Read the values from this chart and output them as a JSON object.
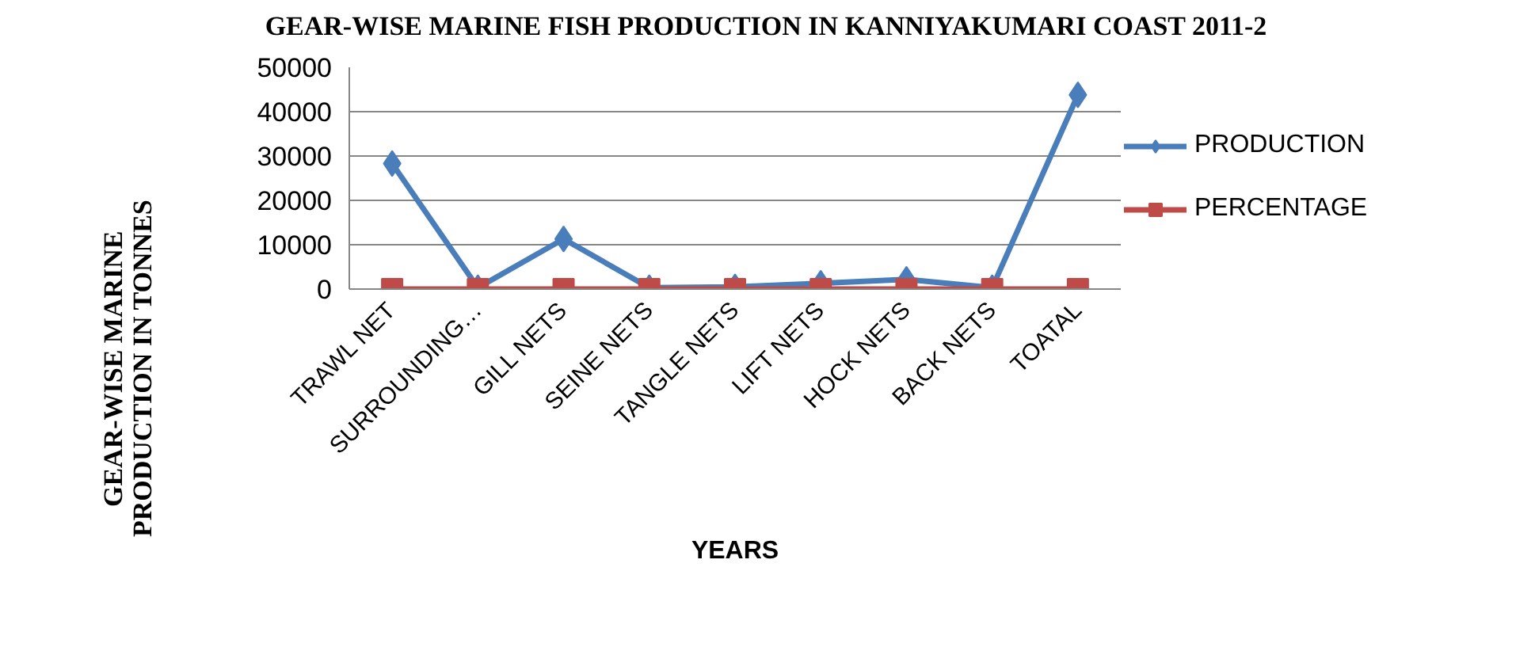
{
  "chart_data": {
    "type": "line",
    "title": "GEAR-WISE MARINE FISH PRODUCTION IN KANNIYAKUMARI COAST 2011-2",
    "xlabel": "YEARS",
    "ylabel": "GEAR-WISE MARINE\nPRODUCTION IN TONNES",
    "categories": [
      "TRAWL NET",
      "SURROUNDING…",
      "GILL NETS",
      "SEINE NETS",
      "TANGLE NETS",
      "LIFT NETS",
      "HOCK NETS",
      "BACK NETS",
      "TOATAL"
    ],
    "series": [
      {
        "name": "PRODUCTION",
        "color": "#4a7ebb",
        "marker": "diamond",
        "values": [
          28300,
          300,
          11300,
          300,
          500,
          1300,
          2200,
          300,
          43800
        ]
      },
      {
        "name": "PERCENTAGE",
        "color": "#be4b48",
        "marker": "square",
        "values": [
          0,
          0,
          0,
          0,
          0,
          0,
          0,
          0,
          0
        ]
      }
    ],
    "ylim": [
      0,
      50000
    ],
    "yticks": [
      0,
      10000,
      20000,
      30000,
      40000,
      50000
    ],
    "grid": "y",
    "legend": "right",
    "line_style": "solid"
  }
}
